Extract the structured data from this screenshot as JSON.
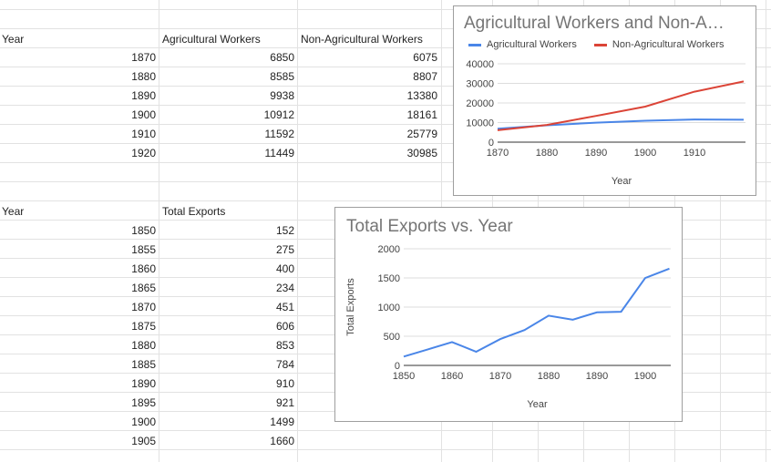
{
  "sheet": {
    "table1": {
      "headers": [
        "Year",
        "Agricultural Workers",
        "Non-Agricultural Workers"
      ],
      "rows": [
        [
          "1870",
          "6850",
          "6075"
        ],
        [
          "1880",
          "8585",
          "8807"
        ],
        [
          "1890",
          "9938",
          "13380"
        ],
        [
          "1900",
          "10912",
          "18161"
        ],
        [
          "1910",
          "11592",
          "25779"
        ],
        [
          "1920",
          "11449",
          "30985"
        ]
      ]
    },
    "table2": {
      "headers": [
        "Year",
        "Total Exports"
      ],
      "rows": [
        [
          "1850",
          "152"
        ],
        [
          "1855",
          "275"
        ],
        [
          "1860",
          "400"
        ],
        [
          "1865",
          "234"
        ],
        [
          "1870",
          "451"
        ],
        [
          "1875",
          "606"
        ],
        [
          "1880",
          "853"
        ],
        [
          "1885",
          "784"
        ],
        [
          "1890",
          "910"
        ],
        [
          "1895",
          "921"
        ],
        [
          "1900",
          "1499"
        ],
        [
          "1905",
          "1660"
        ]
      ]
    }
  },
  "chart_data": [
    {
      "type": "line",
      "title": "Agricultural Workers and Non-A…",
      "xlabel": "Year",
      "ylabel": "",
      "x": [
        1870,
        1880,
        1890,
        1900,
        1910,
        1920
      ],
      "xticks": [
        "1870",
        "1880",
        "1890",
        "1900",
        "1910"
      ],
      "yticks": [
        "0",
        "10000",
        "20000",
        "30000",
        "40000"
      ],
      "ylim": [
        0,
        40000
      ],
      "legend_position": "top",
      "series": [
        {
          "name": "Agricultural Workers",
          "color": "#4a86e8",
          "values": [
            6850,
            8585,
            9938,
            10912,
            11592,
            11449
          ]
        },
        {
          "name": "Non-Agricultural Workers",
          "color": "#db4437",
          "values": [
            6075,
            8807,
            13380,
            18161,
            25779,
            30985
          ]
        }
      ]
    },
    {
      "type": "line",
      "title": "Total Exports vs. Year",
      "xlabel": "Year",
      "ylabel": "Total Exports",
      "x": [
        1850,
        1855,
        1860,
        1865,
        1870,
        1875,
        1880,
        1885,
        1890,
        1895,
        1900,
        1905
      ],
      "xticks": [
        "1850",
        "1860",
        "1870",
        "1880",
        "1890",
        "1900"
      ],
      "yticks": [
        "0",
        "500",
        "1000",
        "1500",
        "2000"
      ],
      "ylim": [
        0,
        2000
      ],
      "series": [
        {
          "name": "Total Exports",
          "color": "#4a86e8",
          "values": [
            152,
            275,
            400,
            234,
            451,
            606,
            853,
            784,
            910,
            921,
            1499,
            1660
          ]
        }
      ]
    }
  ]
}
